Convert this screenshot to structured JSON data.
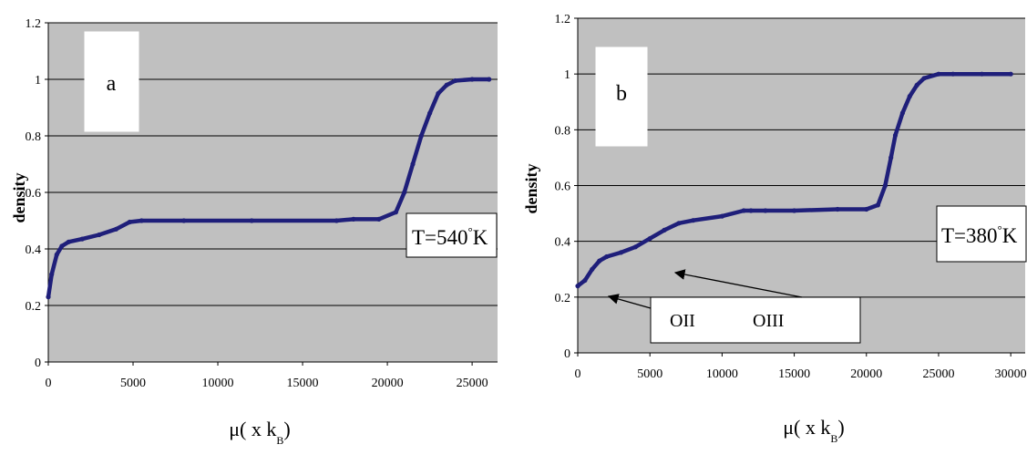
{
  "chart_data": [
    {
      "type": "line",
      "panel_label": "a",
      "title": "",
      "xlabel": "μ( x k",
      "xlabel_sub": "B",
      "xlabel_close": ")",
      "ylabel": "density",
      "xlim": [
        0,
        26500
      ],
      "ylim": [
        0,
        1.2
      ],
      "xticks": [
        0,
        5000,
        10000,
        15000,
        20000,
        25000
      ],
      "xtick_labels": [
        "0",
        "5000",
        "10000",
        "15000",
        "20000",
        "25000"
      ],
      "yticks": [
        0,
        0.2,
        0.4,
        0.6,
        0.8,
        1,
        1.2
      ],
      "ytick_labels": [
        "0",
        "0.2",
        "0.4",
        "0.6",
        "0.8",
        "1",
        "1.2"
      ],
      "grid": true,
      "colors": {
        "plot_bg": "#c0c0c0",
        "series": "#1f1f7a",
        "grid": "#000000"
      },
      "annotation": {
        "temp_prefix": "T=540",
        "temp_degree": "°",
        "temp_suffix": "K"
      },
      "series": [
        {
          "x": [
            0,
            200,
            500,
            800,
            1200,
            2000,
            3000,
            4000,
            4800,
            5500,
            8000,
            12000,
            17000,
            18000,
            19500,
            20500,
            21000,
            21500,
            22000,
            22500,
            23000,
            23500,
            24000,
            25000,
            26000
          ],
          "y": [
            0.23,
            0.31,
            0.38,
            0.41,
            0.425,
            0.435,
            0.45,
            0.47,
            0.495,
            0.5,
            0.5,
            0.5,
            0.5,
            0.505,
            0.505,
            0.53,
            0.6,
            0.7,
            0.8,
            0.88,
            0.95,
            0.98,
            0.995,
            1,
            1
          ]
        }
      ]
    },
    {
      "type": "line",
      "panel_label": "b",
      "title": "",
      "xlabel": "μ( x k",
      "xlabel_sub": "B",
      "xlabel_close": ")",
      "ylabel": "density",
      "xlim": [
        0,
        31000
      ],
      "ylim": [
        0,
        1.2
      ],
      "xticks": [
        0,
        5000,
        10000,
        15000,
        20000,
        25000,
        30000
      ],
      "xtick_labels": [
        "0",
        "5000",
        "10000",
        "15000",
        "20000",
        "25000",
        "30000"
      ],
      "yticks": [
        0,
        0.2,
        0.4,
        0.6,
        0.8,
        1,
        1.2
      ],
      "ytick_labels": [
        "0",
        "0.2",
        "0.4",
        "0.6",
        "0.8",
        "1",
        "1.2"
      ],
      "grid": true,
      "colors": {
        "plot_bg": "#c0c0c0",
        "series": "#1f1f7a",
        "grid": "#000000"
      },
      "annotation": {
        "temp_prefix": "T=380",
        "temp_degree": "°",
        "temp_suffix": "K"
      },
      "phase_labels": [
        "OII",
        "OIII"
      ],
      "series": [
        {
          "x": [
            0,
            500,
            1000,
            1500,
            2000,
            3000,
            4000,
            5000,
            6000,
            7000,
            8000,
            10000,
            11500,
            12000,
            13000,
            15000,
            18000,
            20000,
            20800,
            21300,
            21700,
            22000,
            22500,
            23000,
            23500,
            24000,
            25000,
            26000,
            28000,
            30000
          ],
          "y": [
            0.24,
            0.26,
            0.3,
            0.33,
            0.345,
            0.36,
            0.38,
            0.41,
            0.44,
            0.465,
            0.475,
            0.49,
            0.51,
            0.51,
            0.51,
            0.51,
            0.515,
            0.515,
            0.53,
            0.6,
            0.7,
            0.78,
            0.86,
            0.92,
            0.96,
            0.985,
            1,
            1,
            1,
            1
          ]
        }
      ]
    }
  ]
}
